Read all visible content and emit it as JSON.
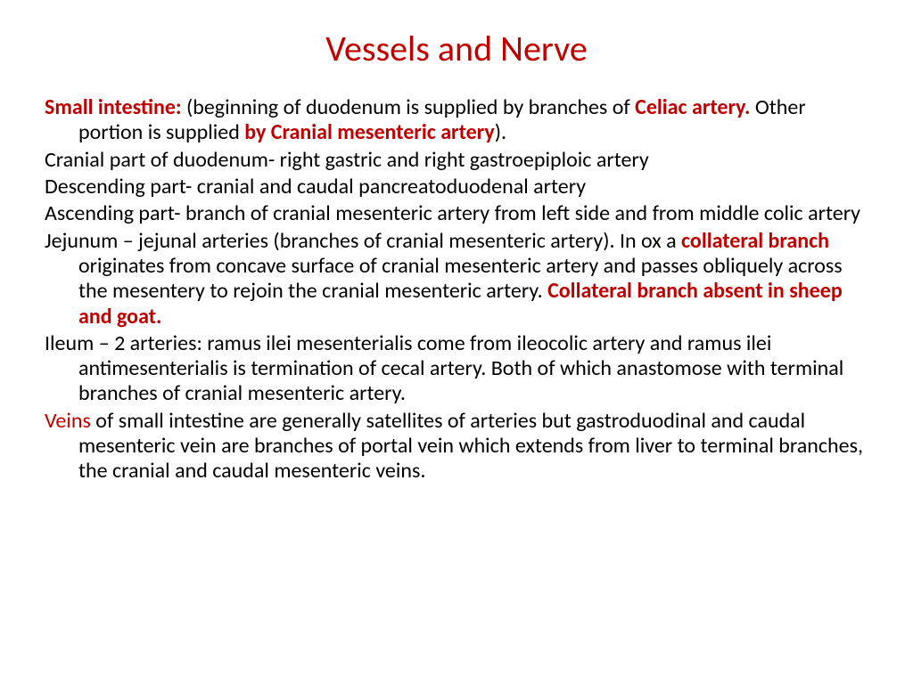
{
  "colors": {
    "title": "#c00000",
    "highlight": "#c00000",
    "body": "#000000",
    "background": "#ffffff"
  },
  "typography": {
    "title_fontsize": 40,
    "title_weight": 400,
    "body_fontsize": 24,
    "line_height": 1.18,
    "font_family": "Calibri, Arial, sans-serif"
  },
  "title": "Vessels and Nerve",
  "paragraphs": [
    {
      "runs": [
        {
          "text": "Small intestine: ",
          "red": true,
          "bold": true
        },
        {
          "text": "(beginning of duodenum is supplied by branches of "
        },
        {
          "text": "Celiac artery. ",
          "red": true,
          "bold": true
        },
        {
          "text": "Other portion is supplied "
        },
        {
          "text": "by Cranial mesenteric artery",
          "red": true,
          "bold": true
        },
        {
          "text": ")."
        }
      ]
    },
    {
      "runs": [
        {
          "text": "Cranial part of duodenum- right gastric and right gastroepiploic artery"
        }
      ]
    },
    {
      "runs": [
        {
          "text": "Descending part- cranial and caudal pancreatoduodenal artery"
        }
      ]
    },
    {
      "runs": [
        {
          "text": "Ascending part- branch of cranial mesenteric artery from left side and from middle colic artery"
        }
      ]
    },
    {
      "runs": [
        {
          "text": "Jejunum – jejunal arteries (branches of cranial mesenteric artery). In ox a "
        },
        {
          "text": "collateral branch ",
          "red": true,
          "bold": true
        },
        {
          "text": "originates from concave surface of cranial mesenteric artery and passes obliquely across the mesentery to rejoin the cranial mesenteric artery. "
        },
        {
          "text": "Collateral branch absent in sheep and goat.",
          "red": true,
          "bold": true
        }
      ]
    },
    {
      "runs": [
        {
          "text": "Ileum – 2 arteries: ramus ilei mesenterialis come from ileocolic artery and ramus ilei antimesenterialis  is termination of cecal artery. Both of which anastomose with terminal branches of cranial mesenteric artery."
        }
      ]
    },
    {
      "runs": [
        {
          "text": "Veins ",
          "red": true
        },
        {
          "text": "of small intestine are generally satellites of arteries but gastroduodinal and caudal mesenteric vein are branches of portal vein which extends from liver to terminal branches, the cranial and caudal mesenteric veins."
        }
      ]
    }
  ]
}
